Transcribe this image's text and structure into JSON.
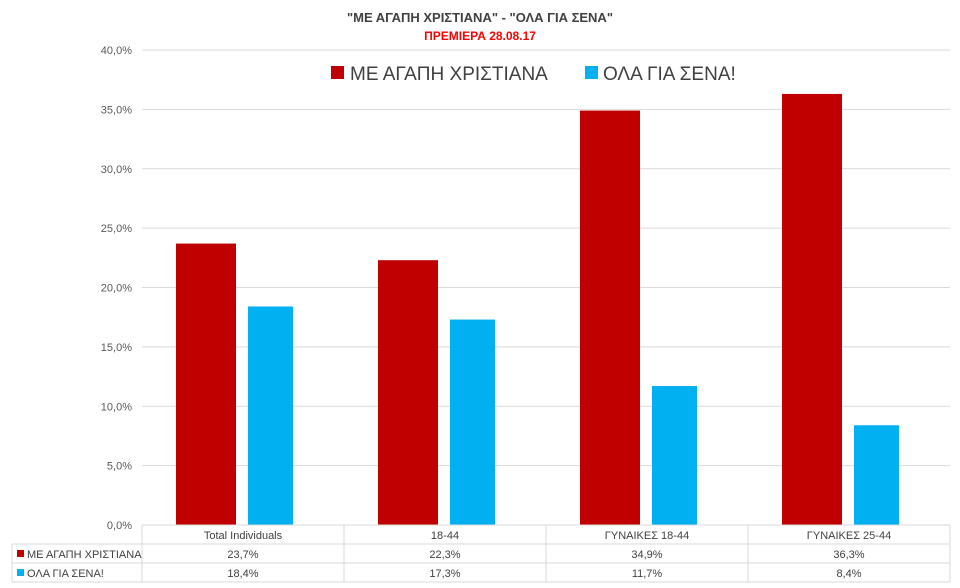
{
  "chart_data": {
    "type": "bar",
    "title": "\"ΜΕ ΑΓΑΠΗ ΧΡΙΣΤΙΑΝΑ\"  -  \"ΟΛΑ ΓΙΑ ΣΕΝΑ\"",
    "subtitle": "ΠΡΕΜΙΕΡΑ 28.08.17",
    "categories": [
      "Total Individuals",
      "18-44",
      "ΓΥΝΑΙΚΕΣ 18-44",
      "ΓΥΝΑΙΚΕΣ 25-44"
    ],
    "series": [
      {
        "name": "ΜΕ ΑΓΑΠΗ ΧΡΙΣΤΙΑΝΑ",
        "values": [
          23.7,
          22.3,
          34.9,
          36.3
        ],
        "labels": [
          "23,7%",
          "22,3%",
          "34,9%",
          "36,3%"
        ],
        "color": "#C00000"
      },
      {
        "name": "ΟΛΑ ΓΙΑ ΣΕΝΑ!",
        "values": [
          18.4,
          17.3,
          11.7,
          8.4
        ],
        "labels": [
          "18,4%",
          "17,3%",
          "11,7%",
          "8,4%"
        ],
        "color": "#00B0F0"
      }
    ],
    "ylim": [
      0,
      40
    ],
    "yticks": [
      "0,0%",
      "5,0%",
      "10,0%",
      "15,0%",
      "20,0%",
      "25,0%",
      "30,0%",
      "35,0%",
      "40,0%"
    ],
    "grid": true,
    "legend": "top-center",
    "data_table": true,
    "title_color": "#404040",
    "subtitle_color": "#FF0000"
  }
}
